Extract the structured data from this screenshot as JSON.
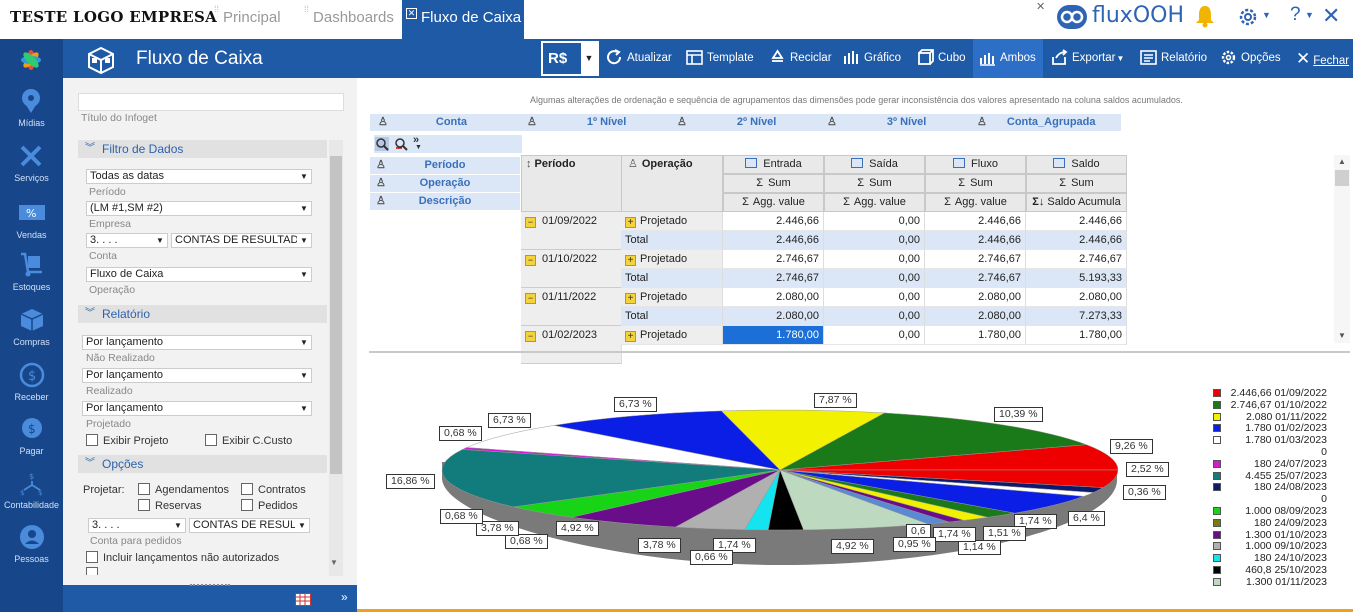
{
  "topbar": {
    "logo": "TESTE LOGO EMPRESA",
    "tabs": [
      {
        "label": "Principal"
      },
      {
        "label": "Dashboards"
      },
      {
        "label": "Fluxo de Caixa"
      }
    ],
    "brand": "fluxOOH",
    "help": "?"
  },
  "header": {
    "title": "Fluxo de Caixa",
    "currency": "R$",
    "toolbar": {
      "atualizar": "Atualizar",
      "template": "Template",
      "reciclar": "Reciclar",
      "grafico": "Gráfico",
      "cubo": "Cubo",
      "ambos": "Ambos",
      "exportar": "Exportar",
      "relatorio": "Relatório",
      "opcoes": "Opções",
      "fechar": "Fechar"
    }
  },
  "sidebar": {
    "items": [
      {
        "label": "Mídias"
      },
      {
        "label": "Serviços"
      },
      {
        "label": "Vendas"
      },
      {
        "label": "Estoques"
      },
      {
        "label": "Compras"
      },
      {
        "label": "Receber"
      },
      {
        "label": "Pagar"
      },
      {
        "label": "Contabilidade"
      },
      {
        "label": "Pessoas"
      }
    ]
  },
  "panel": {
    "title_placeholder": "Título do Infoget",
    "filtro": {
      "header": "Filtro de Dados",
      "periodo_value": "Todas as datas",
      "periodo_label": "Período",
      "empresa_value": "(LM #1,SM #2)",
      "empresa_label": "Empresa",
      "conta_code": "3. . . .",
      "conta_value": "CONTAS DE RESULTADO",
      "conta_label": "Conta",
      "operacao_value": "Fluxo de Caixa",
      "operacao_label": "Operação"
    },
    "relatorio": {
      "header": "Relatório",
      "nao_realizado_value": "Por lançamento",
      "nao_realizado_label": "Não Realizado",
      "realizado_value": "Por lançamento",
      "realizado_label": "Realizado",
      "projetado_value": "Por lançamento",
      "projetado_label": "Projetado",
      "exibir_projeto": "Exibir Projeto",
      "exibir_ccusto": "Exibir C.Custo"
    },
    "opcoes": {
      "header": "Opções",
      "projetar_label": "Projetar:",
      "agendamentos": "Agendamentos",
      "contratos": "Contratos",
      "reservas": "Reservas",
      "pedidos": "Pedidos",
      "conta_code": "3. . . .",
      "conta_value": "CONTAS DE RESULTA",
      "conta_label": "Conta para pedidos",
      "incluir": "Incluir lançamentos não autorizados"
    }
  },
  "grid": {
    "notice": "Algumas alterações de ordenação e sequência de agrupamentos das dimensões pode gerar inconsistência dos valores apresentado na coluna saldos acumulados.",
    "column_dims": [
      "Conta",
      "1º Nível",
      "2º Nível",
      "3º Nível",
      "Conta_Agrupada"
    ],
    "row_dims": [
      "Período",
      "Operação",
      "Descrição"
    ],
    "row_headers": [
      "Período",
      "Operação"
    ],
    "measures": [
      "Entrada",
      "Saída",
      "Fluxo",
      "Saldo"
    ],
    "sum_label": "Sum",
    "agg_labels": [
      "Agg. value",
      "Agg. value",
      "Agg. value",
      "Saldo Acumula"
    ],
    "rows": [
      {
        "periodo": "01/09/2022",
        "operacao": "Projetado",
        "values": [
          "2.446,66",
          "0,00",
          "2.446,66",
          "2.446,66"
        ]
      },
      {
        "periodo": "",
        "operacao": "Total",
        "values": [
          "2.446,66",
          "0,00",
          "2.446,66",
          "2.446,66"
        ]
      },
      {
        "periodo": "01/10/2022",
        "operacao": "Projetado",
        "values": [
          "2.746,67",
          "0,00",
          "2.746,67",
          "2.746,67"
        ]
      },
      {
        "periodo": "",
        "operacao": "Total",
        "values": [
          "2.746,67",
          "0,00",
          "2.746,67",
          "5.193,33"
        ]
      },
      {
        "periodo": "01/11/2022",
        "operacao": "Projetado",
        "values": [
          "2.080,00",
          "0,00",
          "2.080,00",
          "2.080,00"
        ]
      },
      {
        "periodo": "",
        "operacao": "Total",
        "values": [
          "2.080,00",
          "0,00",
          "2.080,00",
          "7.273,33"
        ]
      },
      {
        "periodo": "01/02/2023",
        "operacao": "Projetado",
        "values": [
          "1.780,00",
          "0,00",
          "1.780,00",
          "1.780,00"
        ]
      }
    ]
  },
  "chart_data": {
    "type": "pie",
    "slice_labels": [
      "6,73 %",
      "7,87 %",
      "10,39 %",
      "9,26 %",
      "2,52 %",
      "0,36 %",
      "6,4 %",
      "1,74 %",
      "1,51 %",
      "1,14 %",
      "1,74 %",
      "0,6",
      "0,95 %",
      "4,92 %",
      "1,74 %",
      "0,66 %",
      "3,78 %",
      "4,92 %",
      "0,68 %",
      "3,78 %",
      "0,68 %",
      "16,86 %",
      "0,68 %",
      "6,73 %"
    ],
    "legend": [
      {
        "label": "2.446,66 01/09/2022",
        "color": "#ee0000"
      },
      {
        "label": "2.746,67 01/10/2022",
        "color": "#1a7a1a"
      },
      {
        "label": "2.080 01/11/2022",
        "color": "#f2f200"
      },
      {
        "label": "1.780 01/02/2023",
        "color": "#0a1ee6"
      },
      {
        "label": "1.780 01/03/2023",
        "color": "#ffffff"
      },
      {
        "label": "0",
        "color": ""
      },
      {
        "label": "180 24/07/2023",
        "color": "#d21ad2"
      },
      {
        "label": "4.455 25/07/2023",
        "color": "#127b7b"
      },
      {
        "label": "180 24/08/2023",
        "color": "#0c1a6e"
      },
      {
        "label": "0",
        "color": ""
      },
      {
        "label": "1.000 08/09/2023",
        "color": "#17d417"
      },
      {
        "label": "180 24/09/2023",
        "color": "#7a7a12"
      },
      {
        "label": "1.300 01/10/2023",
        "color": "#6a0d8a"
      },
      {
        "label": "1.000 09/10/2023",
        "color": "#b0b0b0"
      },
      {
        "label": "180 24/10/2023",
        "color": "#14e4f0"
      },
      {
        "label": "460,8 25/10/2023",
        "color": "#000000"
      },
      {
        "label": "1.300 01/11/2023",
        "color": "#bdd9c0"
      }
    ]
  }
}
